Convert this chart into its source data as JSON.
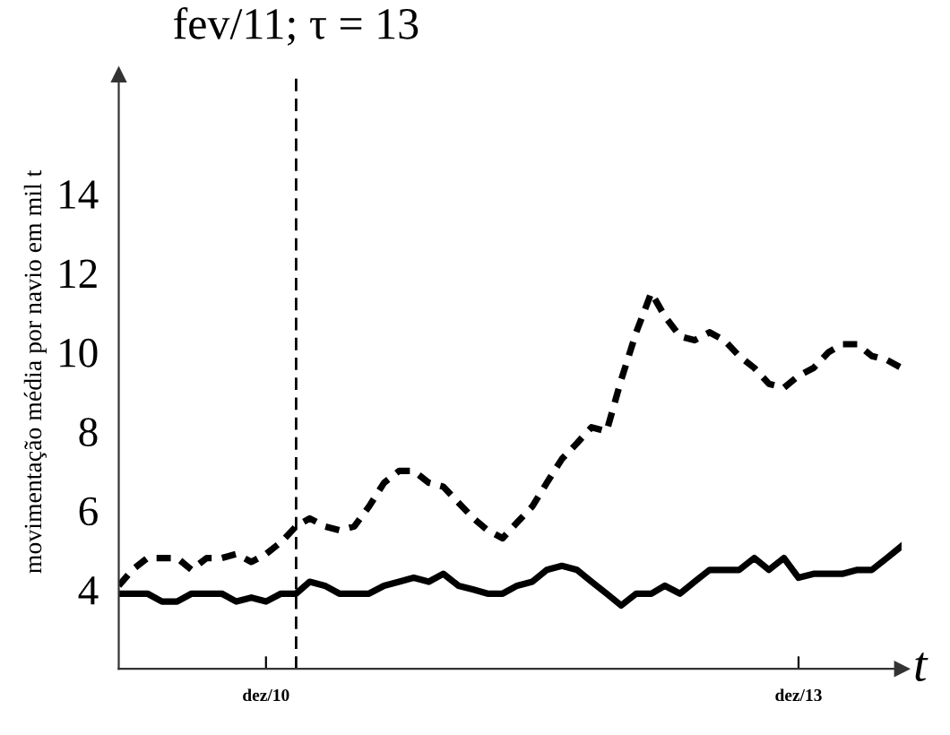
{
  "chart_data": {
    "type": "line",
    "ylabel": "movimentação média por navio em mil t",
    "xlabel": "t",
    "x": [
      "2010-02",
      "2010-03",
      "2010-04",
      "2010-05",
      "2010-06",
      "2010-07",
      "2010-08",
      "2010-09",
      "2010-10",
      "2010-11",
      "2010-12",
      "2011-01",
      "2011-02",
      "2011-03",
      "2011-04",
      "2011-05",
      "2011-06",
      "2011-07",
      "2011-08",
      "2011-09",
      "2011-10",
      "2011-11",
      "2011-12",
      "2012-01",
      "2012-02",
      "2012-03",
      "2012-04",
      "2012-05",
      "2012-06",
      "2012-07",
      "2012-08",
      "2012-09",
      "2012-10",
      "2012-11",
      "2012-12",
      "2013-01",
      "2013-02",
      "2013-03",
      "2013-04",
      "2013-05",
      "2013-06",
      "2013-07",
      "2013-08",
      "2013-09",
      "2013-10",
      "2013-11",
      "2013-12",
      "2014-01",
      "2014-02",
      "2014-03",
      "2014-04",
      "2014-05",
      "2014-06",
      "2014-07"
    ],
    "series": [
      {
        "color": "#000000",
        "line_style": "dashed",
        "values": [
          4.1,
          4.5,
          4.8,
          4.8,
          4.8,
          4.5,
          4.8,
          4.8,
          4.9,
          4.7,
          4.9,
          5.2,
          5.6,
          5.8,
          5.6,
          5.5,
          5.6,
          6.1,
          6.7,
          7.0,
          7.0,
          6.7,
          6.6,
          6.2,
          5.8,
          5.5,
          5.3,
          5.7,
          6.1,
          6.7,
          7.3,
          7.7,
          8.1,
          8.0,
          9.3,
          10.5,
          11.5,
          10.9,
          10.4,
          10.3,
          10.5,
          10.3,
          9.9,
          9.6,
          9.2,
          9.1,
          9.4,
          9.6,
          10.0,
          10.2,
          10.2,
          9.9,
          9.8,
          9.6
        ]
      },
      {
        "color": "#000000",
        "line_style": "solid",
        "values": [
          3.9,
          3.9,
          3.9,
          3.7,
          3.7,
          3.9,
          3.9,
          3.9,
          3.7,
          3.8,
          3.7,
          3.9,
          3.9,
          4.2,
          4.1,
          3.9,
          3.9,
          3.9,
          4.1,
          4.2,
          4.3,
          4.2,
          4.4,
          4.1,
          4.0,
          3.9,
          3.9,
          4.1,
          4.2,
          4.5,
          4.6,
          4.5,
          4.2,
          3.9,
          3.6,
          3.9,
          3.9,
          4.1,
          3.9,
          4.2,
          4.5,
          4.5,
          4.5,
          4.8,
          4.5,
          4.8,
          4.3,
          4.4,
          4.4,
          4.4,
          4.5,
          4.5,
          4.8,
          5.1
        ]
      }
    ],
    "xlim": [
      "2010-02",
      "2014-07"
    ],
    "xticks": [
      {
        "value": "2010-12",
        "label": "dez/10"
      },
      {
        "value": "2013-12",
        "label": "dez/13"
      }
    ],
    "ylim": [
      2,
      17
    ],
    "yticks": [
      4,
      6,
      8,
      10,
      12,
      14
    ],
    "ref_lines": [
      {
        "axis": "x",
        "value": "2011-02",
        "label": "fev/11; τ = 13",
        "color": "#000000",
        "line_style": "dashed"
      }
    ],
    "grid": false,
    "legend": false
  }
}
